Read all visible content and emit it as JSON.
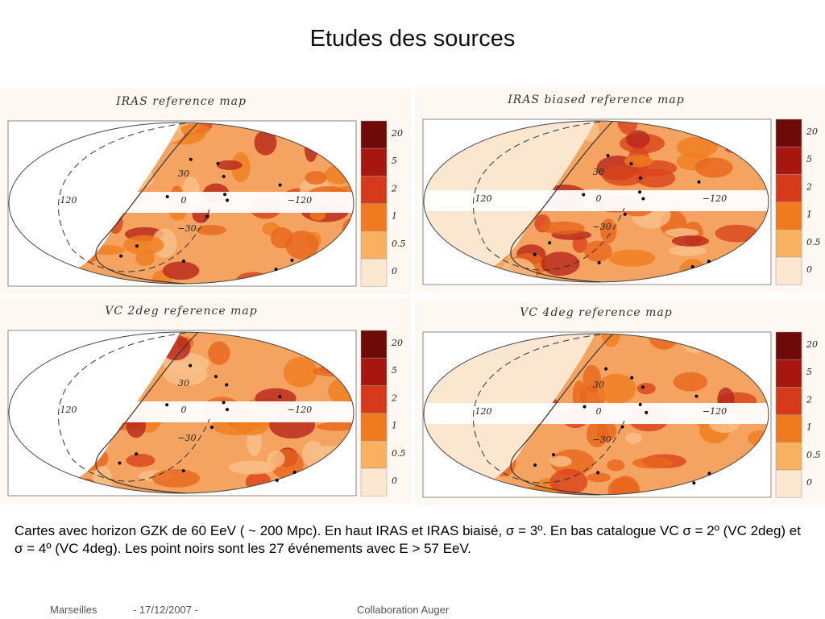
{
  "header": {
    "title": "Etudes des sources"
  },
  "panels": [
    {
      "title": "IRAS reference map"
    },
    {
      "title": "IRAS biased reference map"
    },
    {
      "title": "VC 2deg reference map"
    },
    {
      "title": "VC 4deg reference map"
    }
  ],
  "axis_labels": [
    "120",
    "30",
    "0",
    "−30",
    "−120"
  ],
  "colorbar_labels": [
    "20",
    "5",
    "2",
    "1",
    "0.5",
    "0"
  ],
  "caption": "Cartes avec horizon GZK de 60 EeV ( ~ 200 Mpc). En haut IRAS et IRAS biaisé, σ = 3º. En bas catalogue VC σ = 2º (VC 2deg) et σ = 4º (VC 4deg). Les point noirs sont les  27 événements avec E > 57 EeV.",
  "footer": {
    "place": "Marseilles",
    "date": "- 17/12/2007 -",
    "organization": "Collaboration Auger"
  }
}
